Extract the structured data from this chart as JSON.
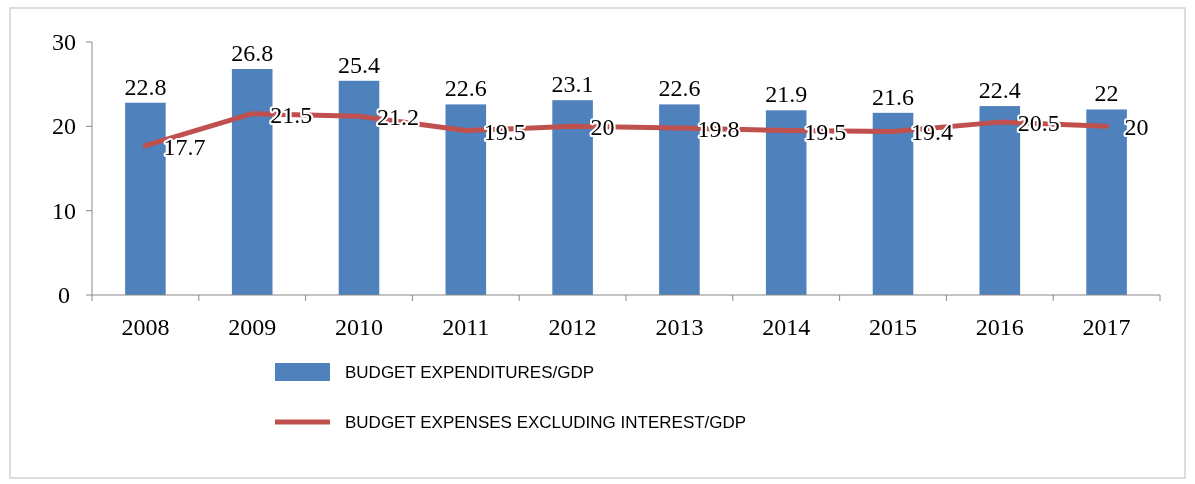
{
  "chart_data": {
    "type": "bar",
    "categories": [
      "2008",
      "2009",
      "2010",
      "2011",
      "2012",
      "2013",
      "2014",
      "2015",
      "2016",
      "2017"
    ],
    "series": [
      {
        "name": "BUDGET EXPENDITURES/GDP",
        "color": "#4f81bd",
        "values": [
          22.8,
          26.8,
          25.4,
          22.6,
          23.1,
          22.6,
          21.9,
          21.6,
          22.4,
          22
        ]
      },
      {
        "name": "BUDGET EXPENSES EXCLUDING INTEREST/GDP",
        "type": "line",
        "color": "#c0504d",
        "values": [
          17.7,
          21.5,
          21.2,
          19.5,
          20,
          19.8,
          19.5,
          19.4,
          20.5,
          20
        ]
      }
    ],
    "ylim": [
      0,
      30
    ],
    "yticks": [
      0,
      10,
      20,
      30
    ],
    "grid": false,
    "legend": "bottom",
    "data_labels": true,
    "line_style": "solid",
    "marker": "none"
  }
}
